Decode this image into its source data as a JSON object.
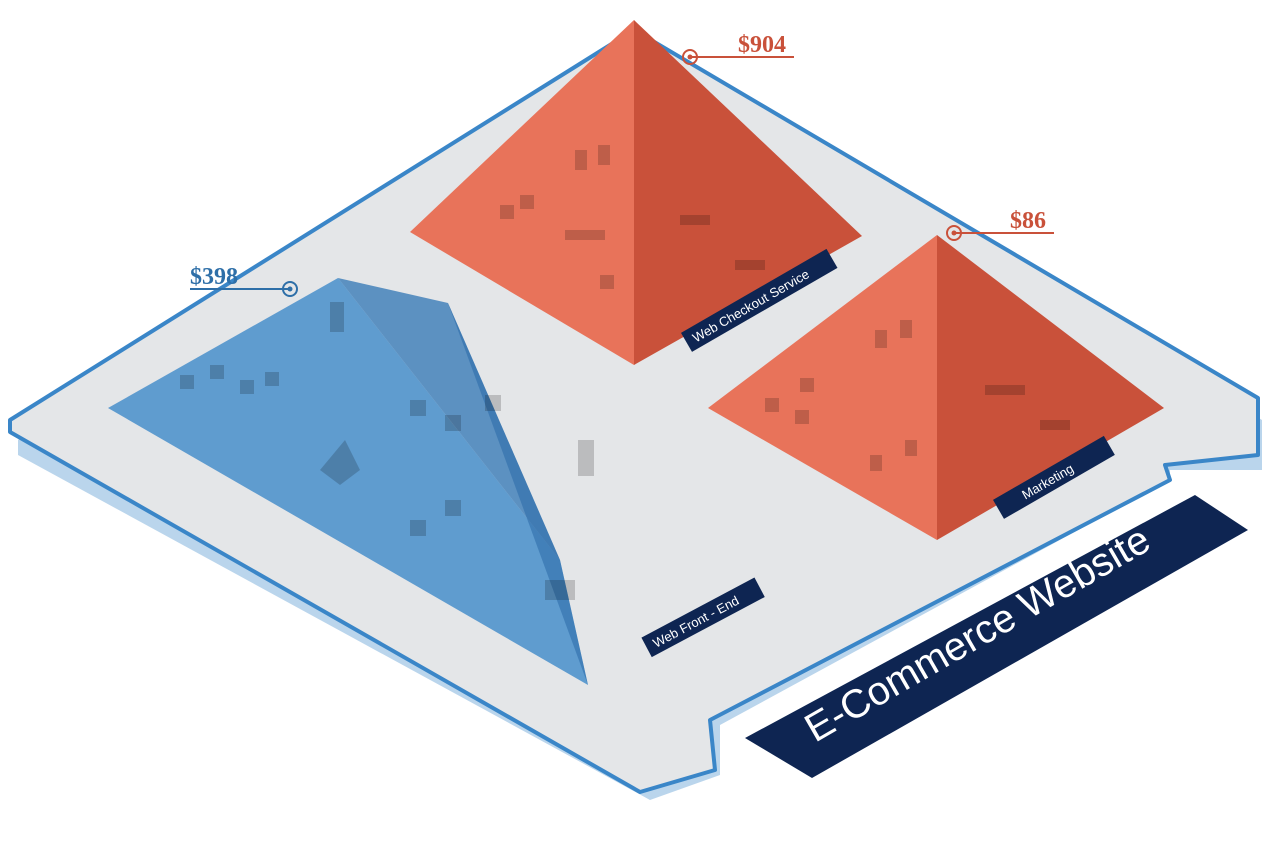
{
  "diagram": {
    "title": "E-Commerce Website",
    "groups": [
      {
        "id": "front-end",
        "label": "Web Front - End",
        "cost": "$398",
        "color": "#3a86c8"
      },
      {
        "id": "checkout",
        "label": "Web Checkout Service",
        "cost": "$904",
        "color": "#e8735a"
      },
      {
        "id": "marketing",
        "label": "Marketing",
        "cost": "$86",
        "color": "#e8735a"
      }
    ]
  },
  "colors": {
    "platform_fill": "#e4e6e8",
    "platform_edge": "#3a86c8",
    "title_bar": "#0e2552",
    "cost_blue": "#2e6fa8",
    "cost_red": "#c9513a"
  }
}
